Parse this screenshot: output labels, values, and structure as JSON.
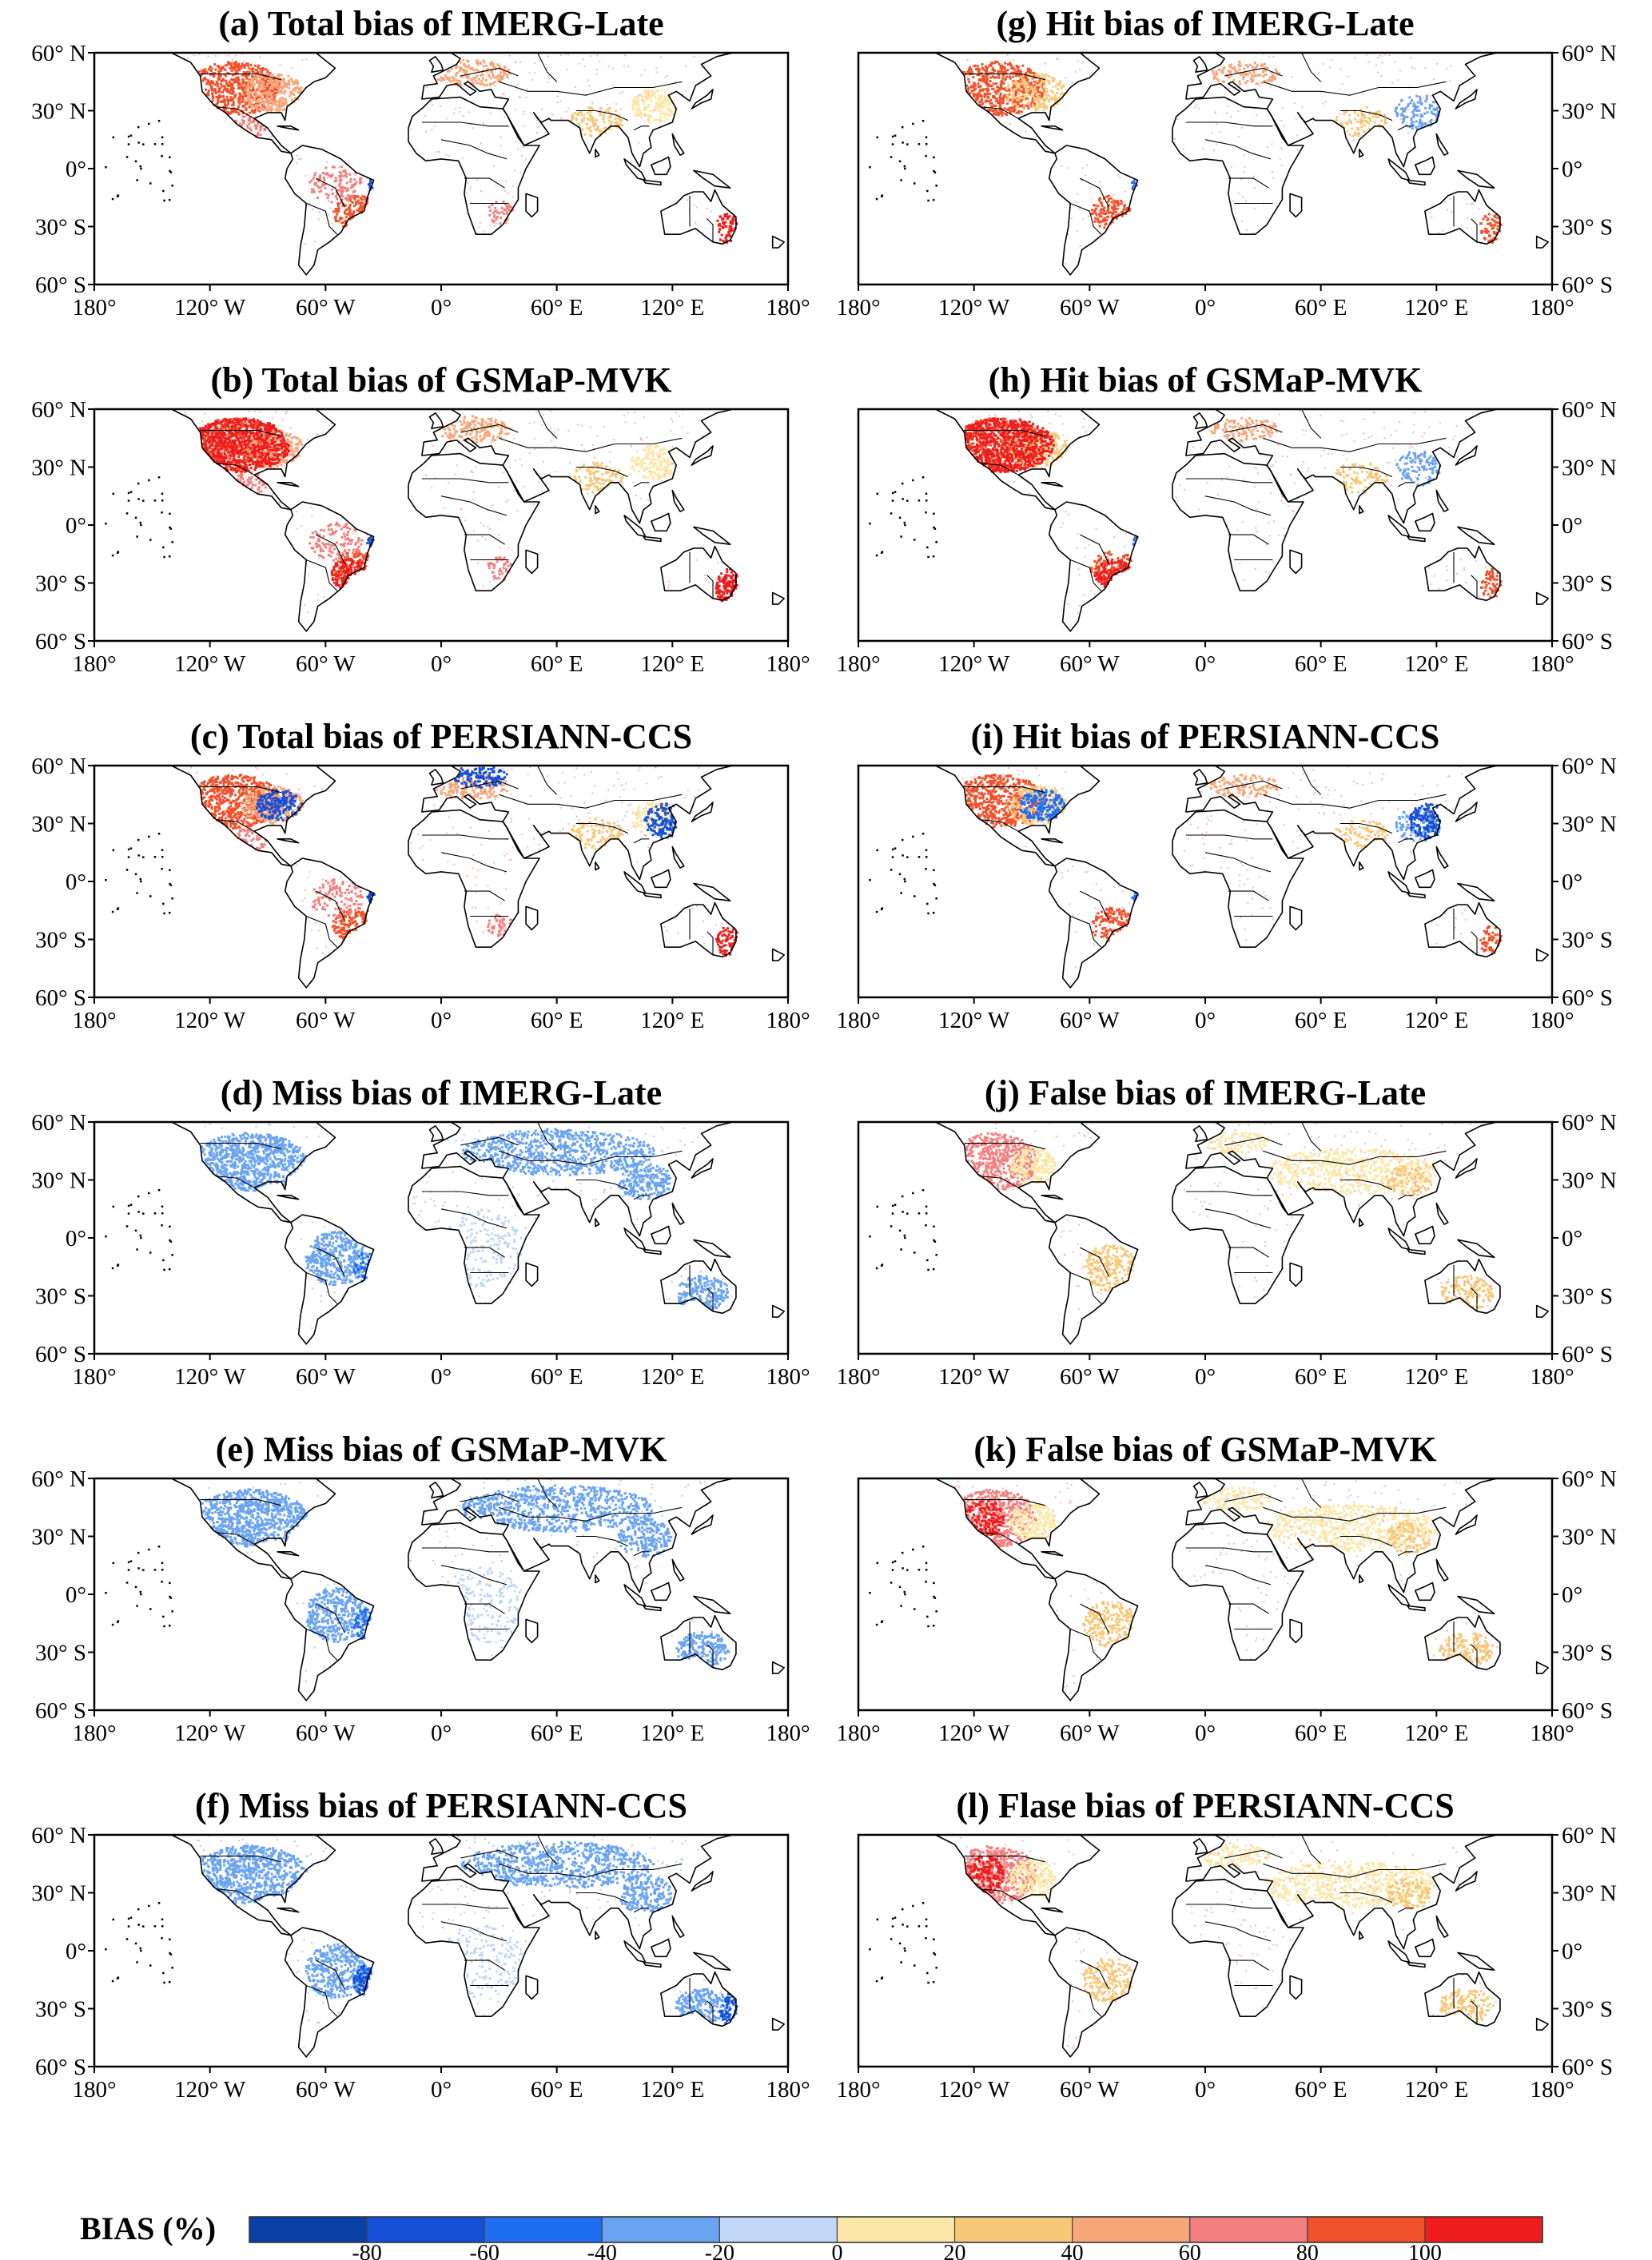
{
  "panels": [
    {
      "id": "a",
      "title": "(a) Total bias of IMERG-Late",
      "column": 0,
      "row": 0
    },
    {
      "id": "b",
      "title": "(b) Total bias of GSMaP-MVK",
      "column": 0,
      "row": 1
    },
    {
      "id": "c",
      "title": "(c) Total bias of PERSIANN-CCS",
      "column": 0,
      "row": 2
    },
    {
      "id": "d",
      "title": "(d) Miss bias of IMERG-Late",
      "column": 0,
      "row": 3
    },
    {
      "id": "e",
      "title": "(e) Miss bias of GSMaP-MVK",
      "column": 0,
      "row": 4
    },
    {
      "id": "f",
      "title": "(f) Miss bias of PERSIANN-CCS",
      "column": 0,
      "row": 5
    },
    {
      "id": "g",
      "title": "(g) Hit bias of IMERG-Late",
      "column": 1,
      "row": 0
    },
    {
      "id": "h",
      "title": "(h) Hit bias of GSMaP-MVK",
      "column": 1,
      "row": 1
    },
    {
      "id": "i",
      "title": "(i) Hit bias of PERSIANN-CCS",
      "column": 1,
      "row": 2
    },
    {
      "id": "j",
      "title": "(j) False bias of IMERG-Late",
      "column": 1,
      "row": 3
    },
    {
      "id": "k",
      "title": "(k) False bias of GSMaP-MVK",
      "column": 1,
      "row": 4
    },
    {
      "id": "l",
      "title": "(l) Flase bias of PERSIANN-CCS",
      "column": 1,
      "row": 5
    }
  ],
  "axes": {
    "longitude_ticks": [
      "180°",
      "120° W",
      "60° W",
      "0°",
      "60° E",
      "120° E",
      "180°"
    ],
    "latitude_ticks": [
      "60° N",
      "30° N",
      "0°",
      "30° S",
      "60° S"
    ],
    "lon_range": [
      -180,
      180
    ],
    "lat_range": [
      -60,
      60
    ]
  },
  "colorbar": {
    "title": "BIAS (%)",
    "labels": [
      "-80",
      "-60",
      "-40",
      "-20",
      "0",
      "20",
      "40",
      "60",
      "80",
      "100"
    ],
    "colors": [
      "#0a3fa6",
      "#1450d6",
      "#1f6ef2",
      "#6aa3f2",
      "#c2d6f7",
      "#fbe7a8",
      "#f7c878",
      "#f6a77a",
      "#f28080",
      "#f0502a",
      "#ee1c1c"
    ]
  }
}
